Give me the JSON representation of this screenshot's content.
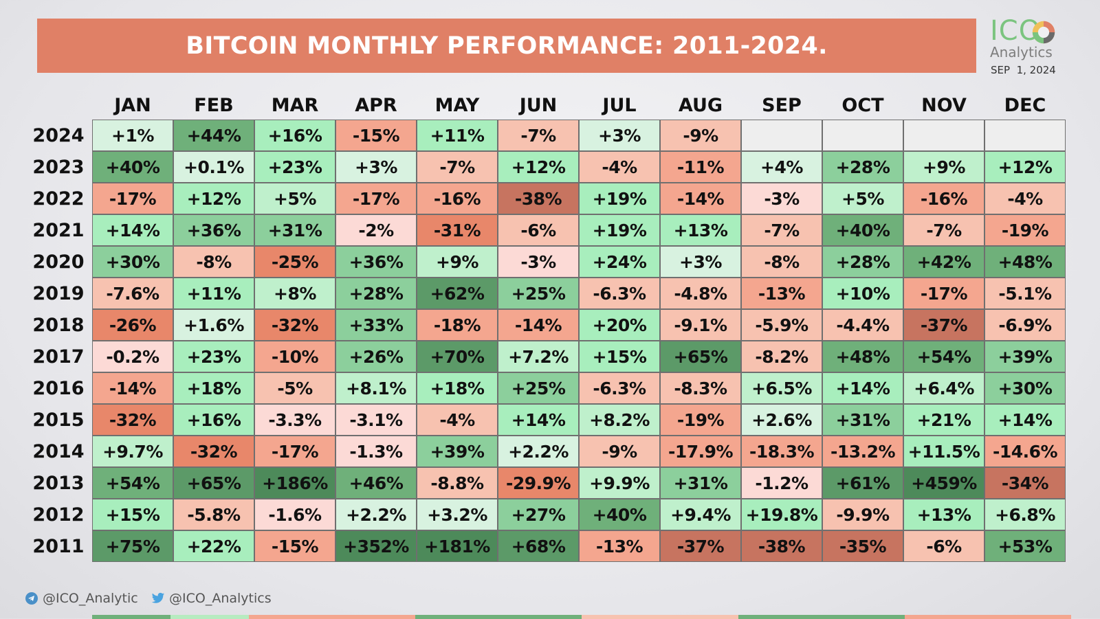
{
  "title": "BITCOIN MONTHLY PERFORMANCE: 2011-2024.",
  "logo": {
    "mark": "ICO",
    "name": "Analytics",
    "date": "SEP  1, 2024"
  },
  "footer": {
    "telegram": "@ICO_Analytic",
    "twitter": "@ICO_Analytics"
  },
  "colors": {
    "banner": "#e08066",
    "positive_scale": [
      "#d8f2e0",
      "#bff0cc",
      "#a8eebd",
      "#8ccf9c",
      "#6fb07a",
      "#5c9a68",
      "#4d8a5a"
    ],
    "negative_scale": [
      "#fcdad6",
      "#f7c2b0",
      "#f4a68f",
      "#e8876a",
      "#c77460"
    ]
  },
  "chart_data": {
    "type": "table",
    "title": "BITCOIN MONTHLY PERFORMANCE: 2011-2024.",
    "columns": [
      "JAN",
      "FEB",
      "MAR",
      "APR",
      "MAY",
      "JUN",
      "JUL",
      "AUG",
      "SEP",
      "OCT",
      "NOV",
      "DEC"
    ],
    "rows": [
      {
        "year": "2024",
        "values": [
          "+1%",
          "+44%",
          "+16%",
          "-15%",
          "+11%",
          "-7%",
          "+3%",
          "-9%",
          "",
          "",
          "",
          ""
        ]
      },
      {
        "year": "2023",
        "values": [
          "+40%",
          "+0.1%",
          "+23%",
          "+3%",
          "-7%",
          "+12%",
          "-4%",
          "-11%",
          "+4%",
          "+28%",
          "+9%",
          "+12%"
        ]
      },
      {
        "year": "2022",
        "values": [
          "-17%",
          "+12%",
          "+5%",
          "-17%",
          "-16%",
          "-38%",
          "+19%",
          "-14%",
          "-3%",
          "+5%",
          "-16%",
          "-4%"
        ]
      },
      {
        "year": "2021",
        "values": [
          "+14%",
          "+36%",
          "+31%",
          "-2%",
          "-31%",
          "-6%",
          "+19%",
          "+13%",
          "-7%",
          "+40%",
          "-7%",
          "-19%"
        ]
      },
      {
        "year": "2020",
        "values": [
          "+30%",
          "-8%",
          "-25%",
          "+36%",
          "+9%",
          "-3%",
          "+24%",
          "+3%",
          "-8%",
          "+28%",
          "+42%",
          "+48%"
        ]
      },
      {
        "year": "2019",
        "values": [
          "-7.6%",
          "+11%",
          "+8%",
          "+28%",
          "+62%",
          "+25%",
          "-6.3%",
          "-4.8%",
          "-13%",
          "+10%",
          "-17%",
          "-5.1%"
        ]
      },
      {
        "year": "2018",
        "values": [
          "-26%",
          "+1.6%",
          "-32%",
          "+33%",
          "-18%",
          "-14%",
          "+20%",
          "-9.1%",
          "-5.9%",
          "-4.4%",
          "-37%",
          "-6.9%"
        ]
      },
      {
        "year": "2017",
        "values": [
          "-0.2%",
          "+23%",
          "-10%",
          "+26%",
          "+70%",
          "+7.2%",
          "+15%",
          "+65%",
          "-8.2%",
          "+48%",
          "+54%",
          "+39%"
        ]
      },
      {
        "year": "2016",
        "values": [
          "-14%",
          "+18%",
          "-5%",
          "+8.1%",
          "+18%",
          "+25%",
          "-6.3%",
          "-8.3%",
          "+6.5%",
          "+14%",
          "+6.4%",
          "+30%"
        ]
      },
      {
        "year": "2015",
        "values": [
          "-32%",
          "+16%",
          "-3.3%",
          "-3.1%",
          "-4%",
          "+14%",
          "+8.2%",
          "-19%",
          "+2.6%",
          "+31%",
          "+21%",
          "+14%"
        ]
      },
      {
        "year": "2014",
        "values": [
          "+9.7%",
          "-32%",
          "-17%",
          "-1.3%",
          "+39%",
          "+2.2%",
          "-9%",
          "-17.9%",
          "-18.3%",
          "-13.2%",
          "+11.5%",
          "-14.6%"
        ]
      },
      {
        "year": "2013",
        "values": [
          "+54%",
          "+65%",
          "+186%",
          "+46%",
          "-8.8%",
          "-29.9%",
          "+9.9%",
          "+31%",
          "-1.2%",
          "+61%",
          "+459%",
          "-34%"
        ]
      },
      {
        "year": "2012",
        "values": [
          "+15%",
          "-5.8%",
          "-1.6%",
          "+2.2%",
          "+3.2%",
          "+27%",
          "+40%",
          "+9.4%",
          "+19.8%",
          "-9.9%",
          "+13%",
          "+6.8%"
        ]
      },
      {
        "year": "2011",
        "values": [
          "+75%",
          "+22%",
          "-15%",
          "+352%",
          "+181%",
          "+68%",
          "-13%",
          "-37%",
          "-38%",
          "-35%",
          "-6%",
          "+53%"
        ]
      }
    ]
  }
}
